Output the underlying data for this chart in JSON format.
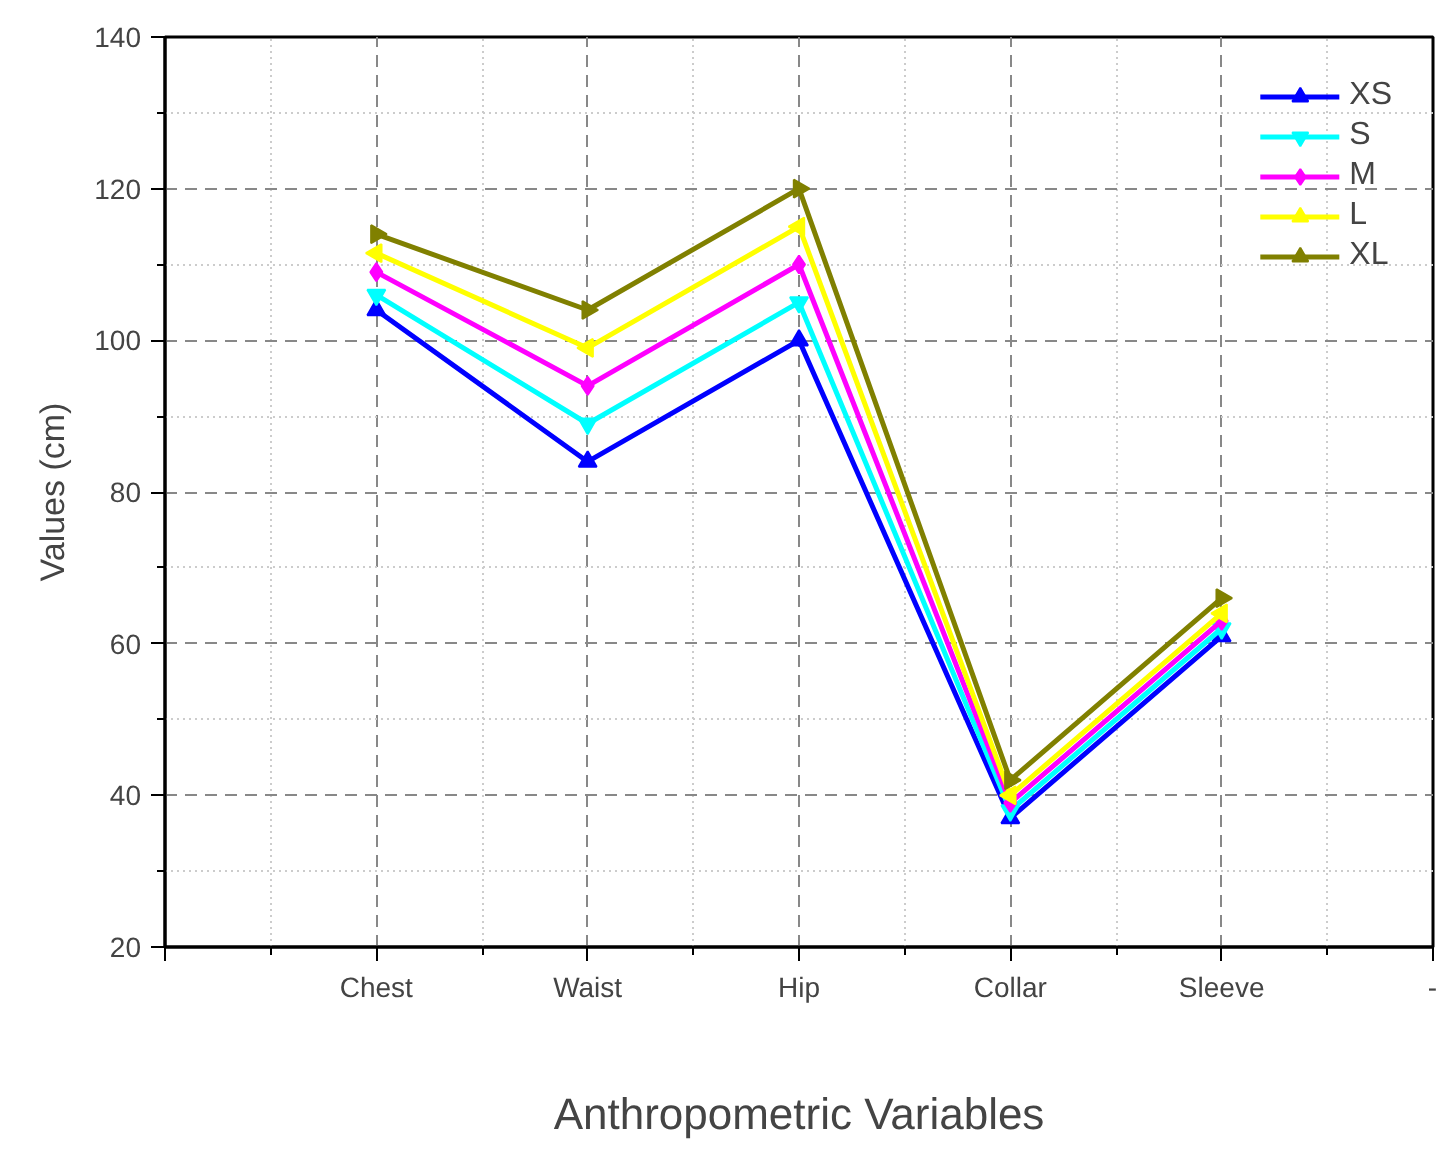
{
  "chart_data": {
    "type": "line",
    "xlabel": "Anthropometric Variables",
    "ylabel": "Values (cm)",
    "categories": [
      null,
      "Chest",
      "Waist",
      "Hip",
      "Collar",
      "Sleeve",
      "-"
    ],
    "ylim": [
      20,
      140
    ],
    "yticks": [
      20,
      40,
      60,
      80,
      100,
      120,
      140
    ],
    "grid": true,
    "legend": "top right",
    "line_style": "solid",
    "series": [
      {
        "name": "XS",
        "color": "#0000ff",
        "marker": "triangle",
        "values": [
          null,
          104,
          84,
          100,
          37,
          61,
          null
        ]
      },
      {
        "name": "S",
        "color": "#00ffff",
        "marker": "triangle_down",
        "values": [
          null,
          106,
          89,
          105,
          38,
          62,
          null
        ]
      },
      {
        "name": "M",
        "color": "#ff00ff",
        "marker": "diamond",
        "values": [
          null,
          109,
          94,
          110,
          39,
          63,
          null
        ]
      },
      {
        "name": "L",
        "color": "#ffff00",
        "marker": "triangle_left",
        "values": [
          null,
          111.5,
          99,
          115,
          40,
          64,
          null
        ]
      },
      {
        "name": "XL",
        "color": "#808000",
        "marker": "triangle_right",
        "values": [
          null,
          114,
          104,
          120,
          42,
          66,
          null
        ]
      }
    ]
  }
}
